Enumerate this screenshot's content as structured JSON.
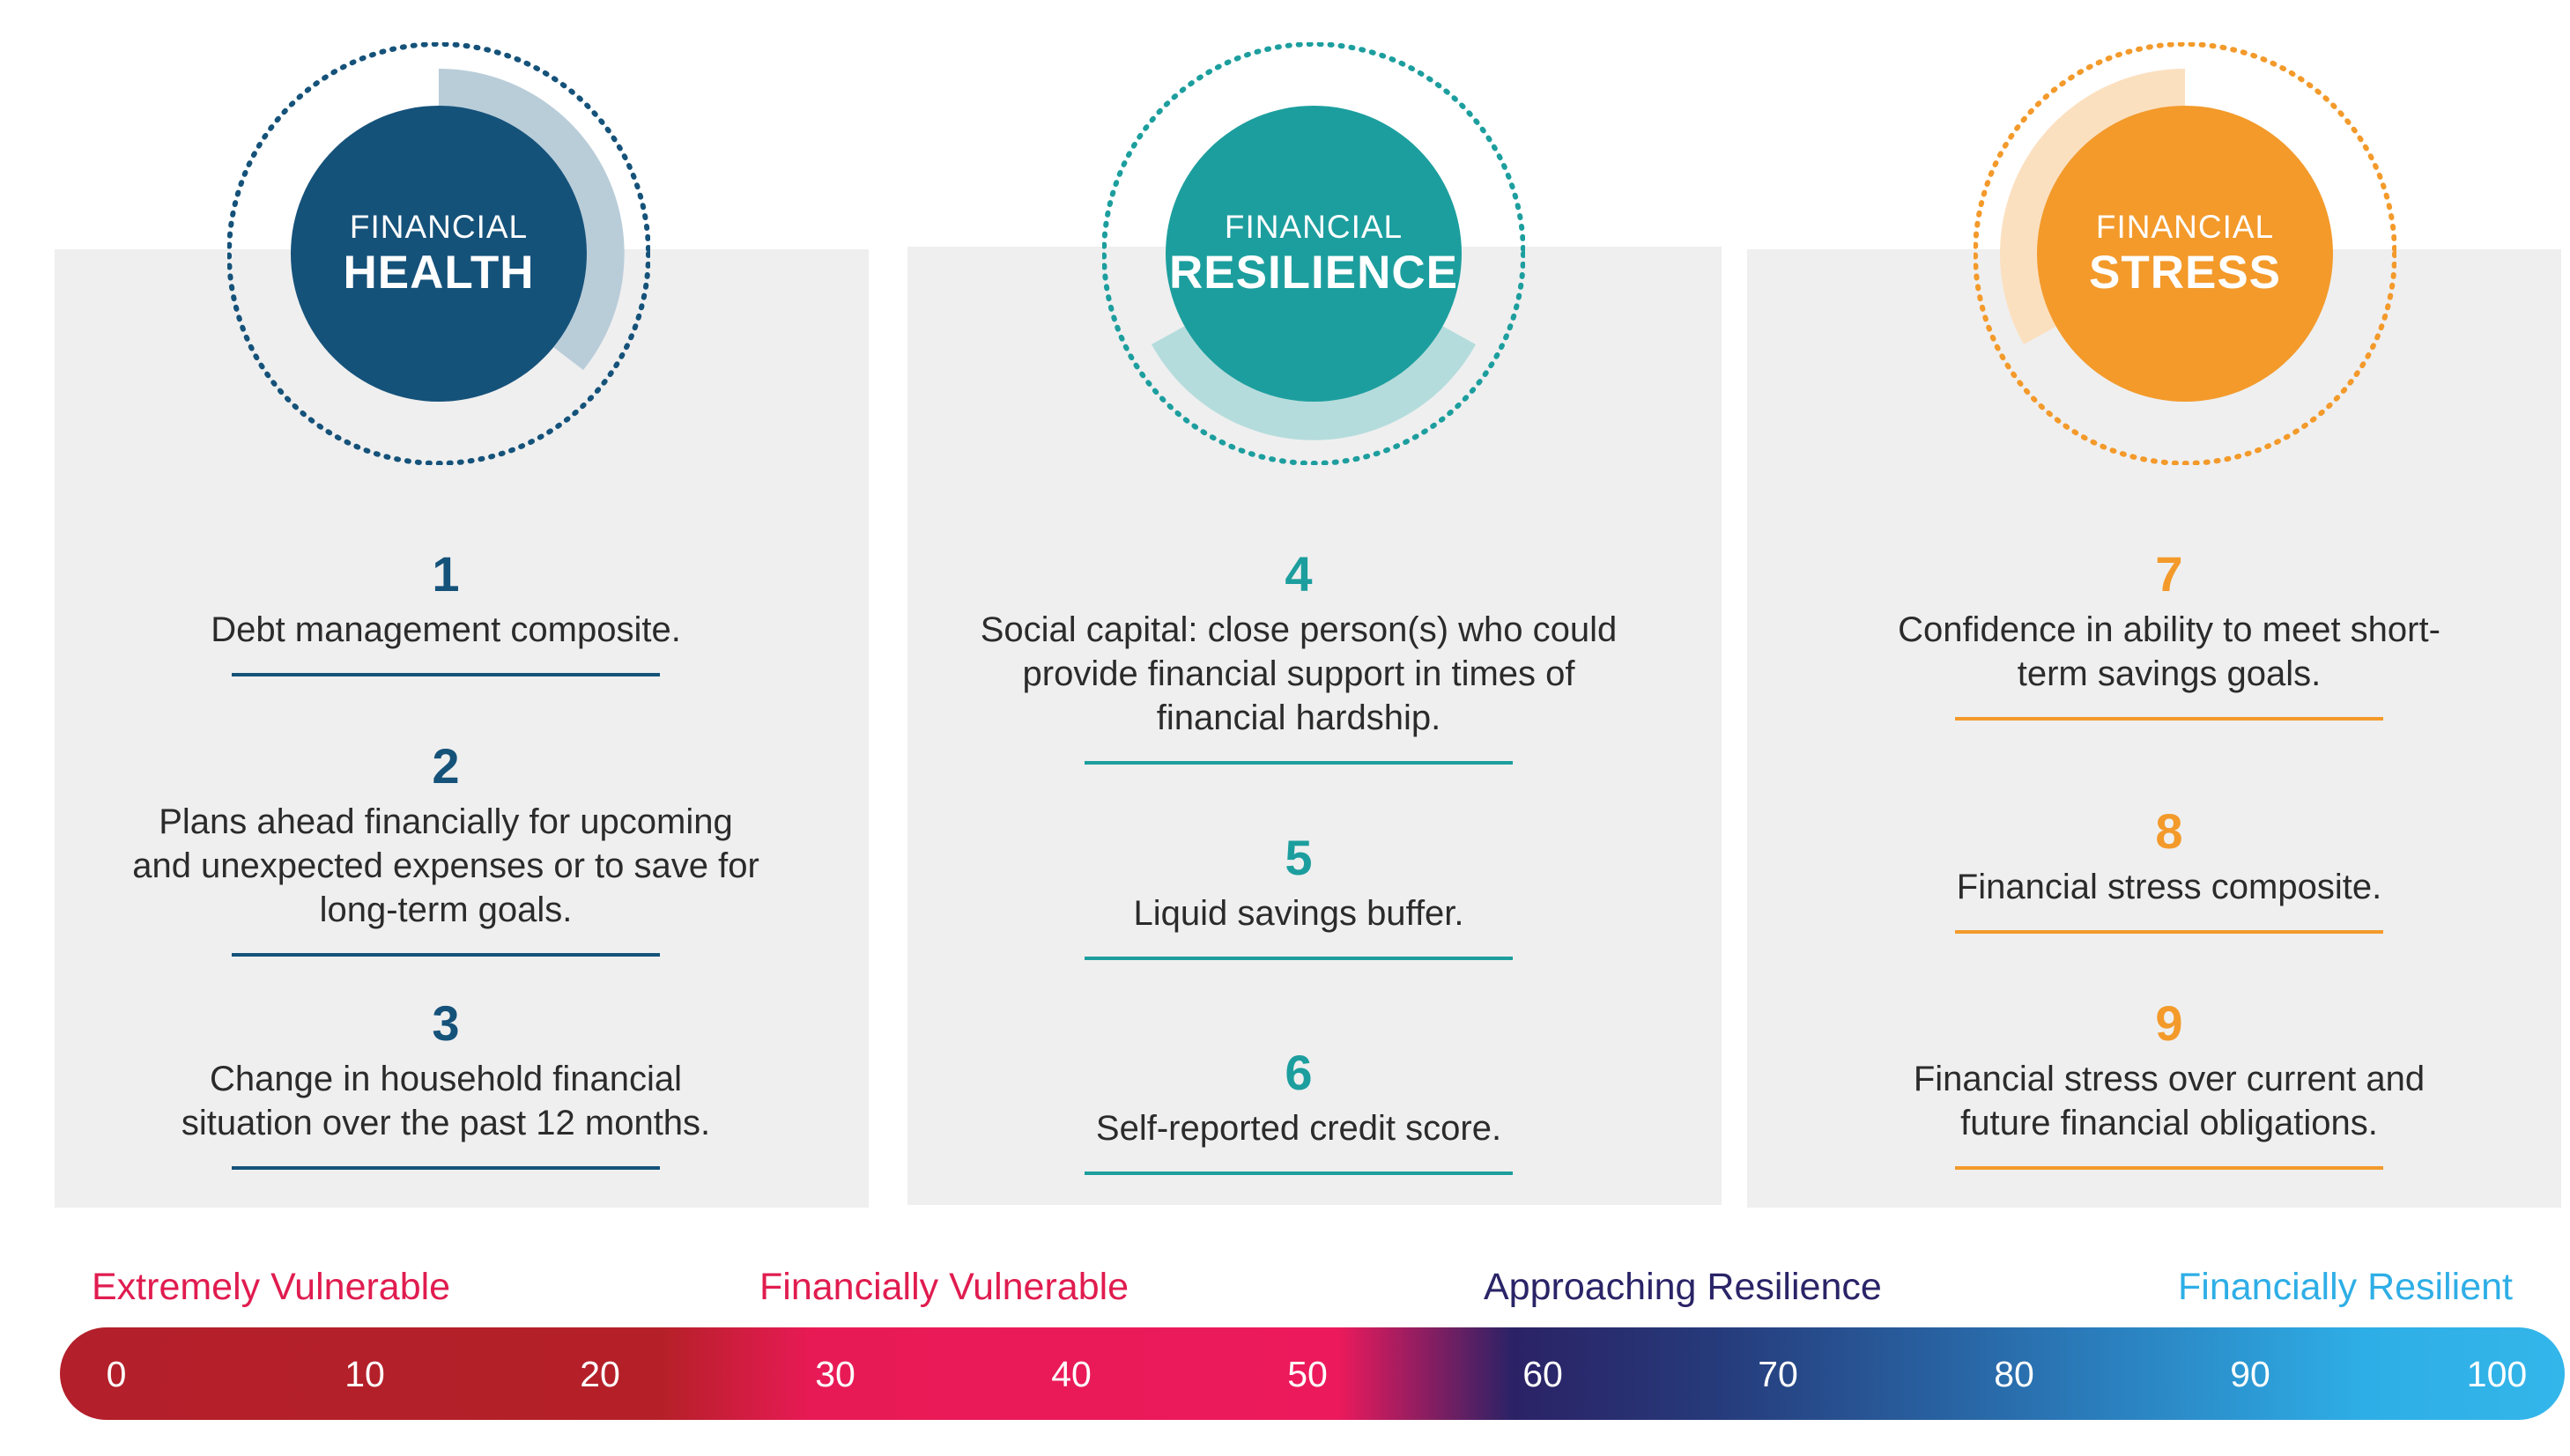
{
  "pillars": [
    {
      "title_top": "FINANCIAL",
      "title_bottom": "HEALTH",
      "color": "#15527a",
      "items": [
        {
          "number": "1",
          "text": "Debt management composite."
        },
        {
          "number": "2",
          "text": "Plans ahead financially for upcoming and unexpected expenses or to save for long-term goals."
        },
        {
          "number": "3",
          "text": "Change in household financial situation over the past 12 months."
        }
      ]
    },
    {
      "title_top": "FINANCIAL",
      "title_bottom": "RESILIENCE",
      "color": "#1d9e9e",
      "items": [
        {
          "number": "4",
          "text": "Social capital: close person(s) who could provide financial support in times of financial hardship."
        },
        {
          "number": "5",
          "text": "Liquid savings buffer."
        },
        {
          "number": "6",
          "text": "Self-reported credit score."
        }
      ]
    },
    {
      "title_top": "FINANCIAL",
      "title_bottom": "STRESS",
      "color": "#f39a2b",
      "items": [
        {
          "number": "7",
          "text": "Confidence in ability to meet short-term savings goals."
        },
        {
          "number": "8",
          "text": "Financial stress composite."
        },
        {
          "number": "9",
          "text": "Financial stress over current and future financial obligations."
        }
      ]
    }
  ],
  "scale": {
    "categories": [
      {
        "label": "Extremely Vulnerable",
        "color": "#e01c4f"
      },
      {
        "label": "Financially Vulnerable",
        "color": "#e01c4f"
      },
      {
        "label": "Approaching Resilience",
        "color": "#2a2467"
      },
      {
        "label": "Financially Resilient",
        "color": "#2eaee6"
      }
    ],
    "ticks": [
      "0",
      "10",
      "20",
      "30",
      "40",
      "50",
      "60",
      "70",
      "80",
      "90",
      "100"
    ]
  }
}
